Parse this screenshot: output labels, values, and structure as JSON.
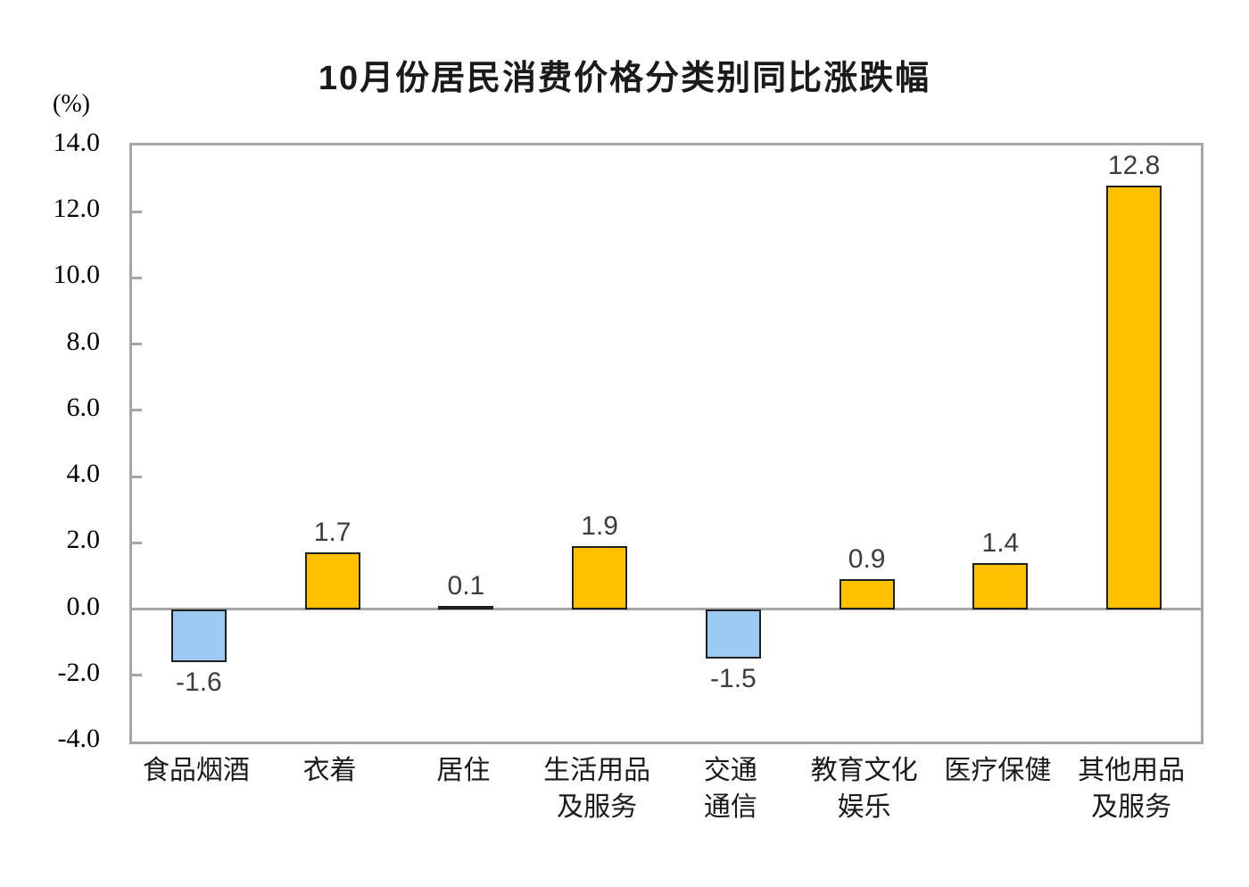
{
  "chart": {
    "title": "10月份居民消费价格分类别同比涨跌幅",
    "unit_label": "(%)"
  },
  "chart_data": {
    "type": "bar",
    "title": "10月份居民消费价格分类别同比涨跌幅",
    "unit": "(%)",
    "categories": [
      "食品烟酒",
      "衣着",
      "居住",
      "生活用品及服务",
      "交通通信",
      "教育文化娱乐",
      "医疗保健",
      "其他用品及服务"
    ],
    "category_label_lines": [
      [
        "食品烟酒"
      ],
      [
        "衣着"
      ],
      [
        "居住"
      ],
      [
        "生活用品",
        "及服务"
      ],
      [
        "交通",
        "通信"
      ],
      [
        "教育文化",
        "娱乐"
      ],
      [
        "医疗保健"
      ],
      [
        "其他用品",
        "及服务"
      ]
    ],
    "values": [
      -1.6,
      1.7,
      0.1,
      1.9,
      -1.5,
      0.9,
      1.4,
      12.8
    ],
    "value_labels": [
      "-1.6",
      "1.7",
      "0.1",
      "1.9",
      "-1.5",
      "0.9",
      "1.4",
      "12.8"
    ],
    "xlabel": "",
    "ylabel": "(%)",
    "ylim": [
      -4,
      14
    ],
    "ytick_step": 2,
    "ytick_labels": [
      "14.0",
      "12.0",
      "10.0",
      "8.0",
      "6.0",
      "4.0",
      "2.0",
      "0.0",
      "-2.0",
      "-4.0"
    ],
    "grid": false,
    "legend_position": "none",
    "colors": {
      "positive_bar": "#FFC000",
      "negative_bar": "#9CC9F2",
      "bar_border": "#1F1F1F",
      "axis_frame": "#A6A6A6",
      "zero_line": "#A6A6A6",
      "title_text": "#1a1a1a",
      "tick_text": "#000000",
      "value_label_text": "#3D3D3D"
    }
  }
}
